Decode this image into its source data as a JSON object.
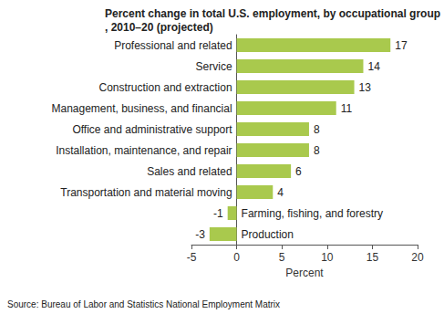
{
  "chart_data": {
    "type": "bar",
    "orientation": "horizontal",
    "title": "Percent change in total U.S. employment, by occupational group, 2010–20 (projected)",
    "x_label": "Percent",
    "source": "Source: Bureau of Labor and Statistics National Employment Matrix",
    "categories": [
      "Professional and related",
      "Service",
      "Construction and extraction",
      "Management, business, and financial",
      "Office and administrative support",
      "Installation, maintenance, and repair",
      "Sales and related",
      "Transportation and material moving",
      "Farming, fishing, and forestry",
      "Production"
    ],
    "values": [
      17,
      14,
      13,
      11,
      8,
      8,
      6,
      4,
      -1,
      -3
    ],
    "color": "#a9c94d",
    "xlim": [
      -5,
      20
    ],
    "xticks": [
      -5,
      0,
      5,
      10,
      15,
      20
    ],
    "grid": false,
    "data_labels": true
  }
}
